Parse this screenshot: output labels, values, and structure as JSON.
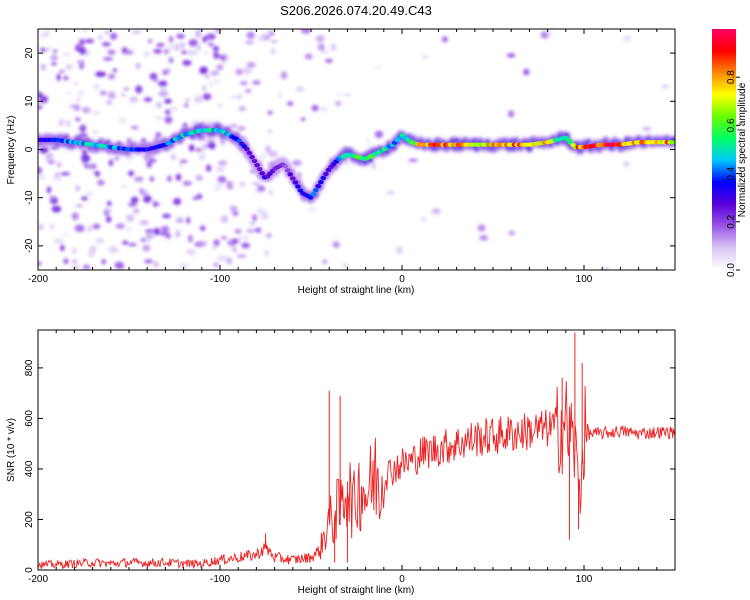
{
  "title": "S206.2026.074.20.49.C43",
  "chart_data": [
    {
      "type": "heatmap",
      "name": "spectrogram",
      "xlabel": "Height of straight line (km)",
      "ylabel": "Frequency (Hz)",
      "xlim": [
        -200,
        150
      ],
      "ylim": [
        -25,
        25
      ],
      "x_ticks": [
        -200,
        -100,
        0,
        100
      ],
      "y_ticks": [
        -20,
        -10,
        0,
        10,
        20
      ],
      "colorbar": {
        "label": "Normalized spectral amplitude",
        "range": [
          0,
          1
        ],
        "ticks": [
          0.0,
          0.2,
          0.4,
          0.6,
          0.8
        ],
        "colormap": [
          "#ffffff",
          "#d9c7f5",
          "#9a55e6",
          "#5a00d8",
          "#0000ff",
          "#00c8ff",
          "#00ff66",
          "#66ff00",
          "#ffff00",
          "#ff8800",
          "#ff0000",
          "#ff0066"
        ]
      },
      "ridge": {
        "description": "dominant frequency track (Hz) vs height (km)",
        "x": [
          -200,
          -190,
          -180,
          -170,
          -160,
          -150,
          -140,
          -130,
          -120,
          -110,
          -100,
          -95,
          -90,
          -85,
          -80,
          -75,
          -70,
          -65,
          -60,
          -55,
          -50,
          -45,
          -40,
          -35,
          -30,
          -25,
          -20,
          -15,
          -10,
          -5,
          0,
          5,
          10,
          20,
          30,
          40,
          50,
          60,
          70,
          80,
          85,
          90,
          95,
          100,
          110,
          120,
          130,
          140,
          150
        ],
        "y": [
          2,
          2,
          1.5,
          1,
          0.5,
          0,
          0,
          1,
          3,
          4,
          4,
          3,
          2,
          0,
          -3,
          -6,
          -4,
          -3,
          -6,
          -9,
          -10,
          -7,
          -4,
          -2,
          -1,
          -1.5,
          -2,
          -1,
          0,
          1,
          3,
          1.5,
          1,
          1,
          1,
          1,
          1,
          1,
          1,
          1.5,
          2,
          2.5,
          0.5,
          0.5,
          1,
          1,
          1.5,
          1.5,
          1.5
        ],
        "peak_amplitude": [
          0.35,
          0.4,
          0.45,
          0.5,
          0.45,
          0.4,
          0.35,
          0.4,
          0.5,
          0.55,
          0.5,
          0.45,
          0.4,
          0.3,
          0.25,
          0.35,
          0.25,
          0.2,
          0.3,
          0.35,
          0.4,
          0.35,
          0.3,
          0.45,
          0.55,
          0.6,
          0.55,
          0.6,
          0.55,
          0.45,
          0.5,
          0.6,
          0.8,
          0.9,
          0.85,
          0.75,
          0.8,
          0.85,
          0.85,
          0.8,
          0.6,
          0.5,
          0.8,
          0.9,
          0.95,
          0.9,
          0.85,
          0.85,
          0.8
        ]
      }
    },
    {
      "type": "line",
      "name": "snr",
      "xlabel": "Height of straight line (km)",
      "ylabel": "SNR (10 * v/v)",
      "xlim": [
        -200,
        150
      ],
      "ylim": [
        0,
        950
      ],
      "x_ticks": [
        -200,
        -100,
        0,
        100
      ],
      "y_ticks": [
        0,
        200,
        400,
        600,
        800
      ],
      "color": "#ee2222",
      "series": [
        {
          "name": "SNR",
          "x": [
            -200,
            -190,
            -180,
            -170,
            -160,
            -150,
            -140,
            -130,
            -120,
            -110,
            -100,
            -90,
            -80,
            -75,
            -70,
            -60,
            -50,
            -45,
            -40,
            -38,
            -36,
            -34,
            -32,
            -30,
            -28,
            -26,
            -24,
            -22,
            -20,
            -18,
            -16,
            -14,
            -12,
            -10,
            -5,
            0,
            5,
            10,
            20,
            30,
            40,
            50,
            60,
            70,
            80,
            85,
            90,
            92,
            94,
            96,
            98,
            100,
            110,
            120,
            130,
            140,
            150
          ],
          "y": [
            20,
            22,
            25,
            30,
            25,
            30,
            28,
            30,
            25,
            25,
            40,
            50,
            60,
            90,
            50,
            40,
            50,
            80,
            200,
            180,
            250,
            220,
            300,
            350,
            280,
            250,
            320,
            330,
            300,
            320,
            350,
            380,
            340,
            370,
            400,
            420,
            430,
            460,
            480,
            500,
            520,
            530,
            540,
            550,
            560,
            570,
            580,
            540,
            520,
            420,
            300,
            540,
            540,
            550,
            540,
            545,
            545
          ],
          "spikes": [
            {
              "x": -75,
              "y": 145
            },
            {
              "x": -40,
              "y": 710
            },
            {
              "x": -37,
              "y": 30
            },
            {
              "x": -34,
              "y": 690
            },
            {
              "x": -30,
              "y": 30
            },
            {
              "x": 88,
              "y": 760
            },
            {
              "x": 92,
              "y": 120
            },
            {
              "x": 95,
              "y": 940
            },
            {
              "x": 97,
              "y": 160
            },
            {
              "x": 99,
              "y": 820
            }
          ]
        }
      ]
    }
  ]
}
